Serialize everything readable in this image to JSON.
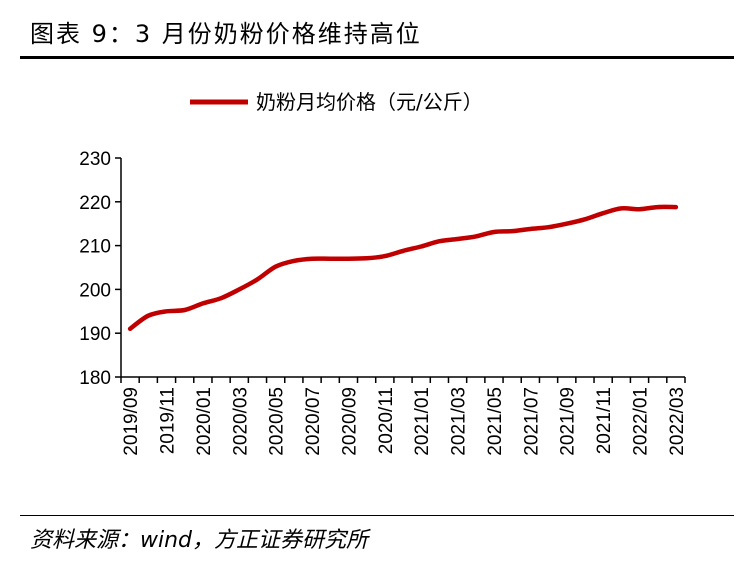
{
  "title": "图表 9：3 月份奶粉价格维持高位",
  "source": "资料来源：wind，方正证券研究所",
  "colors": {
    "series": "#c00000",
    "axis": "#000000",
    "rule": "#000000"
  },
  "chart_data": {
    "type": "line",
    "title": "",
    "xlabel": "",
    "ylabel": "",
    "ylim": [
      180,
      230
    ],
    "yticks": [
      "180",
      "190",
      "200",
      "210",
      "220",
      "230"
    ],
    "grid": false,
    "legend_position": "top-center",
    "x_tick_labels": [
      "2019/09",
      "2019/11",
      "2020/01",
      "2020/03",
      "2020/05",
      "2020/07",
      "2020/09",
      "2020/11",
      "2021/01",
      "2021/03",
      "2021/05",
      "2021/07",
      "2021/09",
      "2021/11",
      "2022/01",
      "2022/03"
    ],
    "x": [
      "2019/09",
      "2019/10",
      "2019/11",
      "2019/12",
      "2020/01",
      "2020/02",
      "2020/03",
      "2020/04",
      "2020/05",
      "2020/06",
      "2020/07",
      "2020/08",
      "2020/09",
      "2020/10",
      "2020/11",
      "2020/12",
      "2021/01",
      "2021/02",
      "2021/03",
      "2021/04",
      "2021/05",
      "2021/06",
      "2021/07",
      "2021/08",
      "2021/09",
      "2021/10",
      "2021/11",
      "2021/12",
      "2022/01",
      "2022/02",
      "2022/03"
    ],
    "series": [
      {
        "name": "奶粉月均价格（元/公斤）",
        "values": [
          191.0,
          194.0,
          195.0,
          195.3,
          196.8,
          198.0,
          200.0,
          202.3,
          205.2,
          206.5,
          207.0,
          207.0,
          207.0,
          207.1,
          207.6,
          208.8,
          209.8,
          211.0,
          211.5,
          212.1,
          213.1,
          213.3,
          213.8,
          214.2,
          215.0,
          216.0,
          217.4,
          218.5,
          218.3,
          218.8,
          218.8
        ]
      }
    ]
  }
}
